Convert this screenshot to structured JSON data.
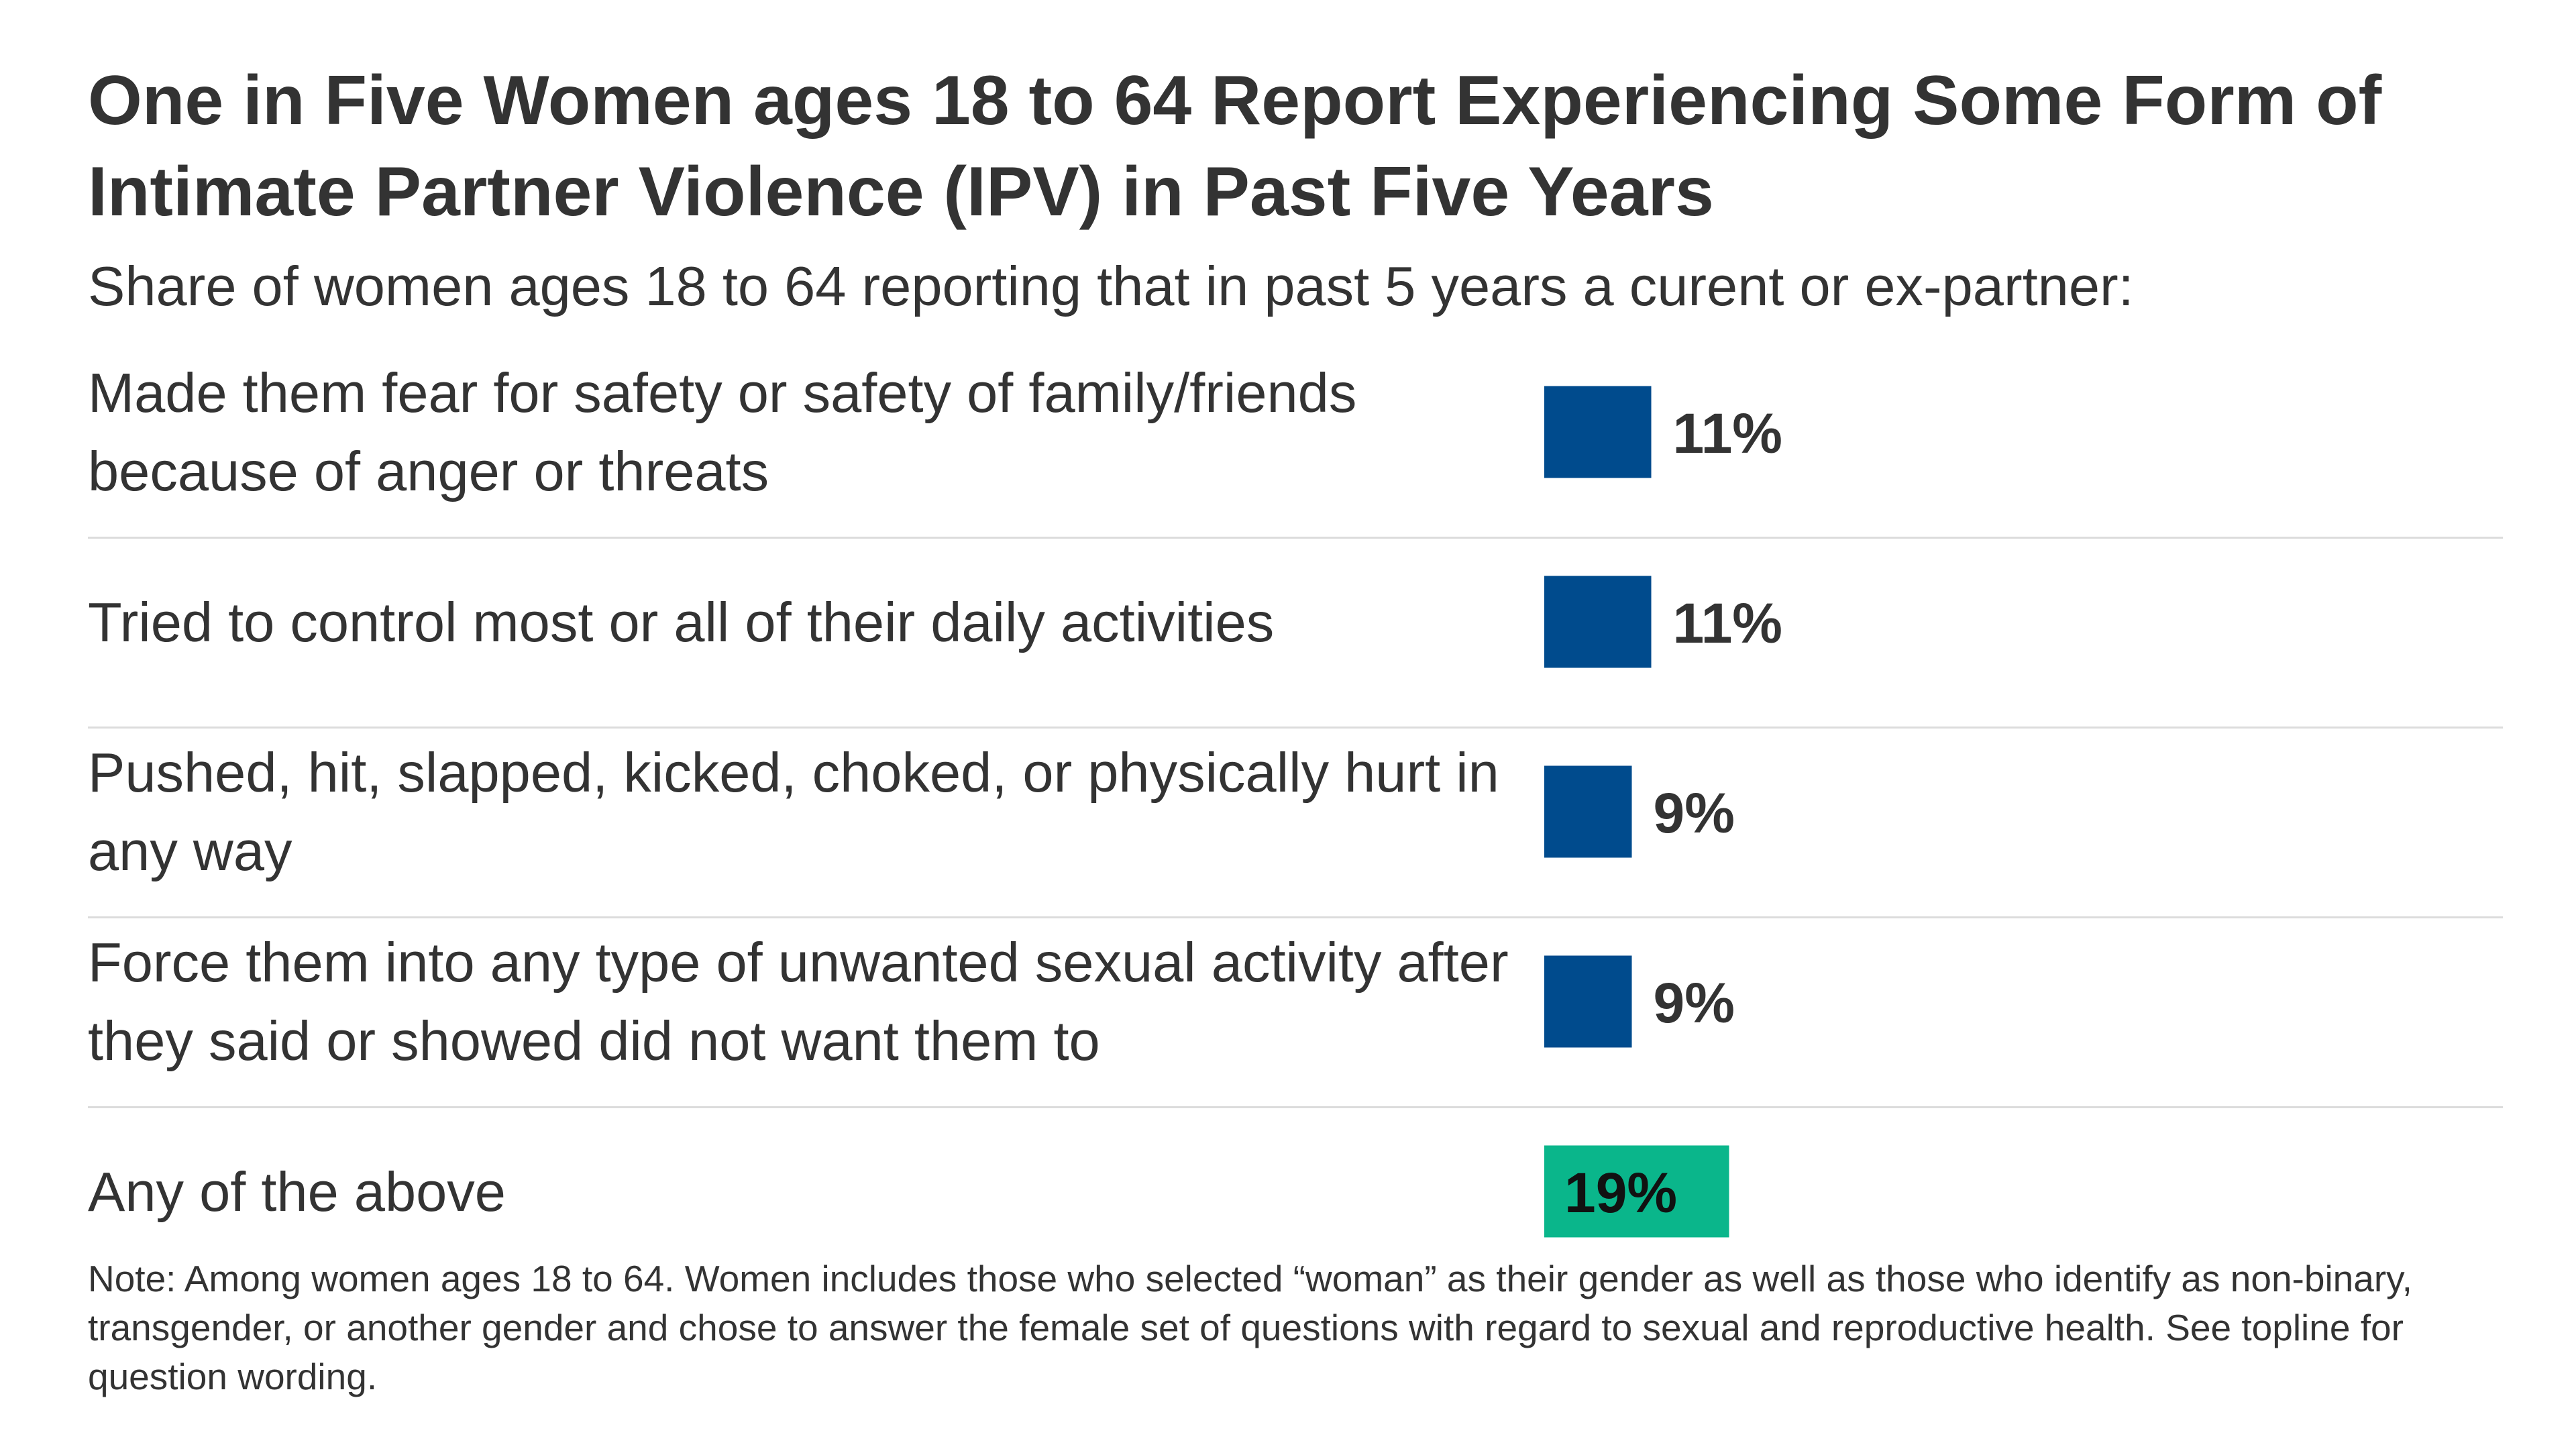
{
  "title": "One in Five Women ages 18 to 64 Report Experiencing Some Form of Intimate Partner Violence (IPV) in Past Five Years",
  "subtitle": "Share of women ages 18 to 64 reporting that in past 5 years a curent or ex-partner:",
  "note": "Note: Among women ages 18 to 64. Women includes those who selected “woman” as their gender as well as those who identify as non-binary, transgender, or another gender and chose to answer the female set of questions with regard to sexual and reproductive health. See topline for question wording.",
  "colors": {
    "bar": "#004b8d",
    "highlight": "#0ab68b",
    "text": "#333333",
    "divider": "#dcdcdc"
  },
  "chart_data": {
    "type": "bar",
    "orientation": "horizontal",
    "categories": [
      "Made them fear for safety or safety of family/friends because of anger or threats",
      "Tried to control most or all of their daily activities",
      "Pushed, hit, slapped, kicked, choked, or physically hurt in any way",
      "Force them into any type of unwanted sexual activity after they said or showed did not want them to",
      "Any of the above"
    ],
    "values": [
      11,
      11,
      9,
      9,
      19
    ],
    "value_labels": [
      "11%",
      "11%",
      "9%",
      "9%",
      "19%"
    ],
    "highlight_index": 4,
    "unit": "%",
    "title": "One in Five Women ages 18 to 64 Report Experiencing Some Form of Intimate Partner Violence (IPV) in Past Five Years",
    "xlabel": "",
    "ylabel": "",
    "grid": false,
    "legend": "none"
  }
}
